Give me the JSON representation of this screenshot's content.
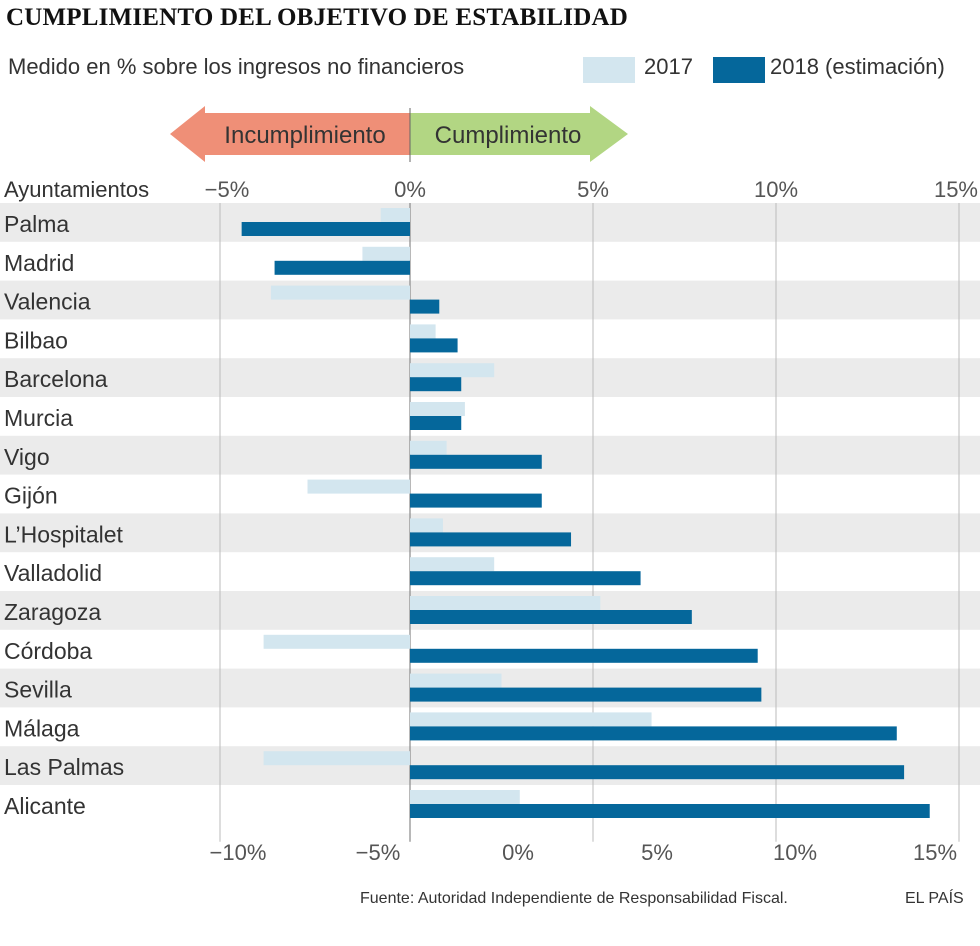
{
  "chart_data": {
    "type": "bar",
    "orientation": "horizontal",
    "title": "CUMPLIMIENTO DEL OBJETIVO DE ESTABILIDAD",
    "subtitle": "Medido en % sobre los ingresos no financieros",
    "category_header": "Ayuntamientos",
    "categories": [
      "Palma",
      "Madrid",
      "Valencia",
      "Bilbao",
      "Barcelona",
      "Murcia",
      "Vigo",
      "Gijón",
      "L’Hospitalet",
      "Valladolid",
      "Zaragoza",
      "Córdoba",
      "Sevilla",
      "Málaga",
      "Las Palmas",
      "Alicante"
    ],
    "series": [
      {
        "name": "2017",
        "color": "#d3e6ef",
        "values": [
          -0.8,
          -1.3,
          -3.8,
          0.7,
          2.3,
          1.5,
          1.0,
          -2.8,
          0.9,
          2.3,
          5.2,
          -4.0,
          2.5,
          6.6,
          -4.0,
          3.0
        ]
      },
      {
        "name": "2018 (estimación)",
        "color": "#05679b",
        "values": [
          -4.6,
          -3.7,
          0.8,
          1.3,
          1.4,
          1.4,
          3.6,
          3.6,
          4.4,
          6.3,
          7.7,
          9.5,
          9.6,
          13.3,
          13.5,
          14.2
        ]
      }
    ],
    "top_axis": {
      "min": -5,
      "max": 15,
      "ticks": [
        -5,
        0,
        5,
        10,
        15
      ],
      "labels": [
        "−5%",
        "0%",
        "5%",
        "10%",
        "15%"
      ]
    },
    "bottom_axis": {
      "min": -10,
      "max": 15,
      "ticks": [
        -10,
        -5,
        0,
        5,
        10,
        15
      ],
      "labels": [
        "−10%",
        "−5%",
        "0%",
        "5%",
        "10%",
        "15%"
      ]
    },
    "arrows": {
      "left": "Incumplimiento",
      "right": "Cumplimiento",
      "left_color": "#ef8f77",
      "right_color": "#b2d683"
    },
    "grid": true
  },
  "footer": {
    "source": "Fuente: Autoridad Independiente de Responsabilidad Fiscal.",
    "brand": "EL PAÍS"
  }
}
